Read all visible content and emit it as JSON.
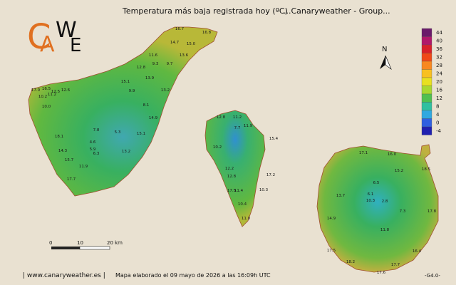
{
  "header": {
    "title": "Temperatura más baja registrada hoy (ºC)",
    "group": "...Canaryweather - Group..."
  },
  "logo": {
    "letters": [
      "C",
      "A",
      "W",
      "E"
    ]
  },
  "legend": {
    "ticks": [
      44,
      40,
      36,
      32,
      28,
      24,
      20,
      16,
      12,
      8,
      4,
      0,
      -4
    ],
    "colors": [
      "#6a1a6a",
      "#b0186a",
      "#d8202a",
      "#f04818",
      "#f88820",
      "#f8c020",
      "#e8e020",
      "#a8d830",
      "#50c050",
      "#30c0a0",
      "#30a8e0",
      "#3060e0",
      "#2020b0"
    ]
  },
  "compass": "N",
  "scale_bar": {
    "labels": [
      "0",
      "10",
      "20 km"
    ]
  },
  "stations": {
    "tenerife": [
      "16.7",
      "16.8",
      "14.7",
      "15.0",
      "13.6",
      "11.6",
      "9.3",
      "9.7",
      "12.8",
      "13.9",
      "15.1",
      "9.9",
      "13.2",
      "17.0",
      "16.5",
      "12.5",
      "12.6",
      "10.2",
      "11.2",
      "10.0",
      "8.1",
      "14.9",
      "7.8",
      "5.3",
      "15.1",
      "4.6",
      "5.9",
      "6.3",
      "13.2",
      "11.9",
      "17.7",
      "18.1",
      "14.3",
      "15.7"
    ],
    "la_palma": [
      "12.8",
      "11.2",
      "7.7",
      "11.9",
      "10.2",
      "12.2",
      "12.8",
      "17.2",
      "10.3",
      "17.5",
      "11.4",
      "10.4",
      "11.0",
      "15.4"
    ],
    "gran_canaria": [
      "17.1",
      "16.0",
      "18.5",
      "15.2",
      "13.7",
      "6.5",
      "6.1",
      "10.3",
      "2.8",
      "7.3",
      "14.9",
      "11.8",
      "17.8",
      "16.4",
      "17.5",
      "18.2",
      "17.6",
      "17.7"
    ]
  },
  "footer": {
    "site": "| www.canaryweather.es |",
    "date": "Mapa elaborado el 09 mayo de 2026 a las 16:09h UTC",
    "version": "-G4.0-"
  }
}
